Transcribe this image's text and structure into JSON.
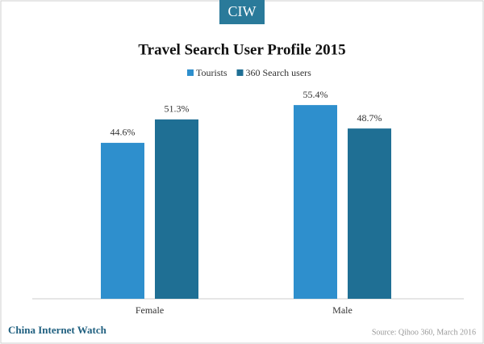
{
  "chart_data": {
    "type": "bar",
    "title": "Travel Search User Profile 2015",
    "categories": [
      "Female",
      "Male"
    ],
    "series": [
      {
        "name": "Tourists",
        "color": "#2e8fcd",
        "values": [
          44.6,
          55.4
        ],
        "value_labels": [
          "44.6%",
          "55.4%"
        ]
      },
      {
        "name": "360 Search users",
        "color": "#1f6f94",
        "values": [
          51.3,
          48.7
        ],
        "value_labels": [
          "51.3%",
          "48.7%"
        ]
      }
    ],
    "legend": "top",
    "logo": "CIW",
    "brand": "China Internet Watch",
    "source": "Source: Qihoo 360, March 2016"
  }
}
